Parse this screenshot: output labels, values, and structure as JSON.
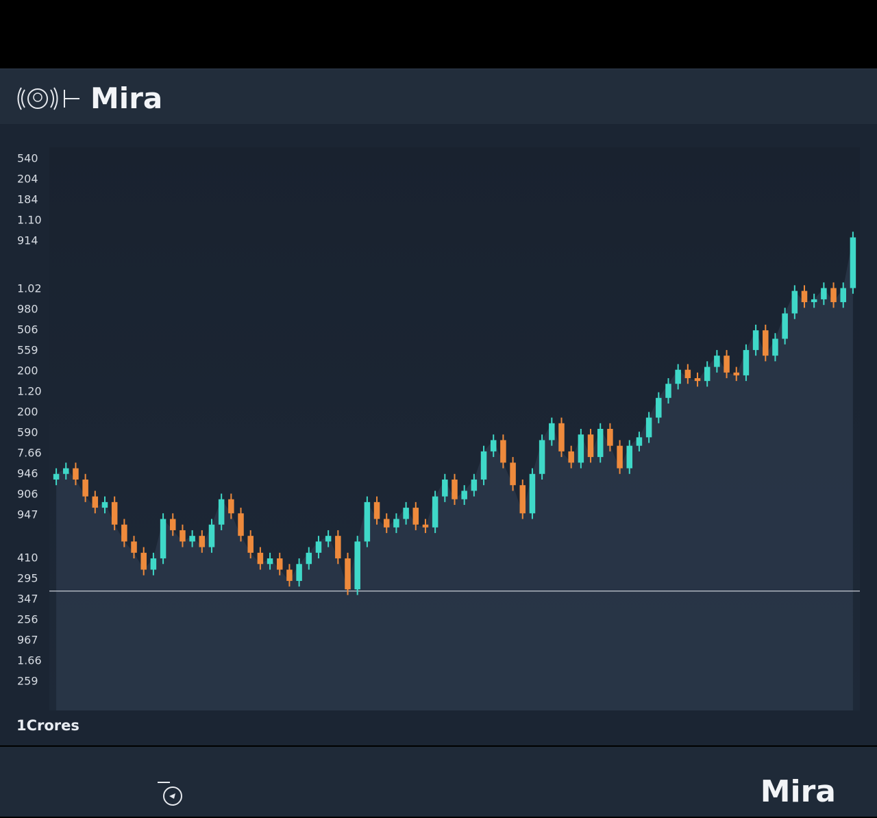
{
  "header": {
    "title": "Mira"
  },
  "chart_data": {
    "type": "candlestick",
    "y_axis_labels": [
      [
        "540",
        "204",
        "184",
        "1.10",
        "914"
      ],
      [
        "1.02",
        "980",
        "506",
        "559",
        "200",
        "1.20",
        "200",
        "590",
        "7.66",
        "946",
        "906",
        "947"
      ],
      [
        "410",
        "295",
        "347",
        "256",
        "967",
        "1.66",
        "259"
      ]
    ],
    "ylim": [
      0,
      100
    ],
    "up_color": "#3fd8c8",
    "down_color": "#ee8a3c",
    "reference_line": 21.2,
    "candles": [
      [
        41,
        43,
        40,
        42
      ],
      [
        42,
        44,
        41,
        43
      ],
      [
        43,
        44,
        40,
        41
      ],
      [
        41,
        42,
        37,
        38
      ],
      [
        38,
        39,
        35,
        36
      ],
      [
        36,
        38,
        35,
        37
      ],
      [
        37,
        38,
        32,
        33
      ],
      [
        33,
        34,
        29,
        30
      ],
      [
        30,
        31,
        27,
        28
      ],
      [
        28,
        29,
        24,
        25
      ],
      [
        25,
        28,
        24,
        27
      ],
      [
        27,
        35,
        26,
        34
      ],
      [
        34,
        35,
        31,
        32
      ],
      [
        32,
        33,
        29,
        30
      ],
      [
        30,
        32,
        29,
        31
      ],
      [
        31,
        32,
        28,
        29
      ],
      [
        29,
        34,
        28,
        33
      ],
      [
        33,
        38.5,
        32,
        37.5
      ],
      [
        37.5,
        38.5,
        34,
        35
      ],
      [
        35,
        36,
        30,
        31
      ],
      [
        31,
        32,
        27,
        28
      ],
      [
        28,
        29,
        25,
        26
      ],
      [
        26,
        28,
        25,
        27
      ],
      [
        27,
        28,
        24,
        25
      ],
      [
        25,
        26,
        22,
        23
      ],
      [
        23,
        27,
        22,
        26
      ],
      [
        26,
        29,
        25,
        28
      ],
      [
        28,
        31,
        27,
        30
      ],
      [
        30,
        32,
        29,
        31
      ],
      [
        31,
        32,
        26,
        27
      ],
      [
        27,
        28,
        20.5,
        21.5
      ],
      [
        21.5,
        31,
        20.5,
        30
      ],
      [
        30,
        38,
        29,
        37
      ],
      [
        37,
        38,
        33,
        34
      ],
      [
        34,
        35,
        31.5,
        32.5
      ],
      [
        32.5,
        35,
        31.5,
        34
      ],
      [
        34,
        37,
        33,
        36
      ],
      [
        36,
        37,
        32,
        33
      ],
      [
        33,
        34,
        31.5,
        32.5
      ],
      [
        32.5,
        39,
        31.5,
        38
      ],
      [
        38,
        42,
        37,
        41
      ],
      [
        41,
        42,
        36.5,
        37.5
      ],
      [
        37.5,
        40,
        36.5,
        39
      ],
      [
        39,
        42,
        38,
        41
      ],
      [
        41,
        47,
        40,
        46
      ],
      [
        46,
        49,
        45,
        48
      ],
      [
        48,
        49,
        43,
        44
      ],
      [
        44,
        45,
        39,
        40
      ],
      [
        40,
        41,
        34,
        35
      ],
      [
        35,
        43,
        34,
        42
      ],
      [
        42,
        49,
        41,
        48
      ],
      [
        48,
        52,
        47,
        51
      ],
      [
        51,
        52,
        45,
        46
      ],
      [
        46,
        47,
        43,
        44
      ],
      [
        44,
        50,
        43,
        49
      ],
      [
        49,
        50,
        44,
        45
      ],
      [
        45,
        51,
        44,
        50
      ],
      [
        50,
        51,
        46,
        47
      ],
      [
        47,
        48,
        42,
        43
      ],
      [
        43,
        48,
        42,
        47
      ],
      [
        47,
        49.5,
        46,
        48.5
      ],
      [
        48.5,
        53,
        47.5,
        52
      ],
      [
        52,
        56.5,
        51,
        55.5
      ],
      [
        55.5,
        59,
        54.5,
        58
      ],
      [
        58,
        61.5,
        57,
        60.5
      ],
      [
        60.5,
        61.5,
        58,
        59
      ],
      [
        59,
        60,
        57.5,
        58.5
      ],
      [
        58.5,
        62,
        57.5,
        61
      ],
      [
        61,
        64,
        60,
        63
      ],
      [
        63,
        64,
        59,
        60
      ],
      [
        60,
        61,
        58.5,
        59.5
      ],
      [
        59.5,
        65,
        58.5,
        64
      ],
      [
        64,
        68.5,
        63,
        67.5
      ],
      [
        67.5,
        68.5,
        62,
        63
      ],
      [
        63,
        67,
        62,
        66
      ],
      [
        66,
        71.5,
        65,
        70.5
      ],
      [
        70.5,
        75.5,
        69.5,
        74.5
      ],
      [
        74.5,
        75.5,
        71.5,
        72.5
      ],
      [
        72.5,
        74,
        71.5,
        73
      ],
      [
        73,
        76,
        72,
        75
      ],
      [
        75,
        76,
        71.5,
        72.5
      ],
      [
        72.5,
        76,
        71.5,
        75
      ],
      [
        75,
        85,
        74,
        84
      ]
    ],
    "footnote": "1Crores"
  },
  "footer": {
    "title": "Mira"
  }
}
